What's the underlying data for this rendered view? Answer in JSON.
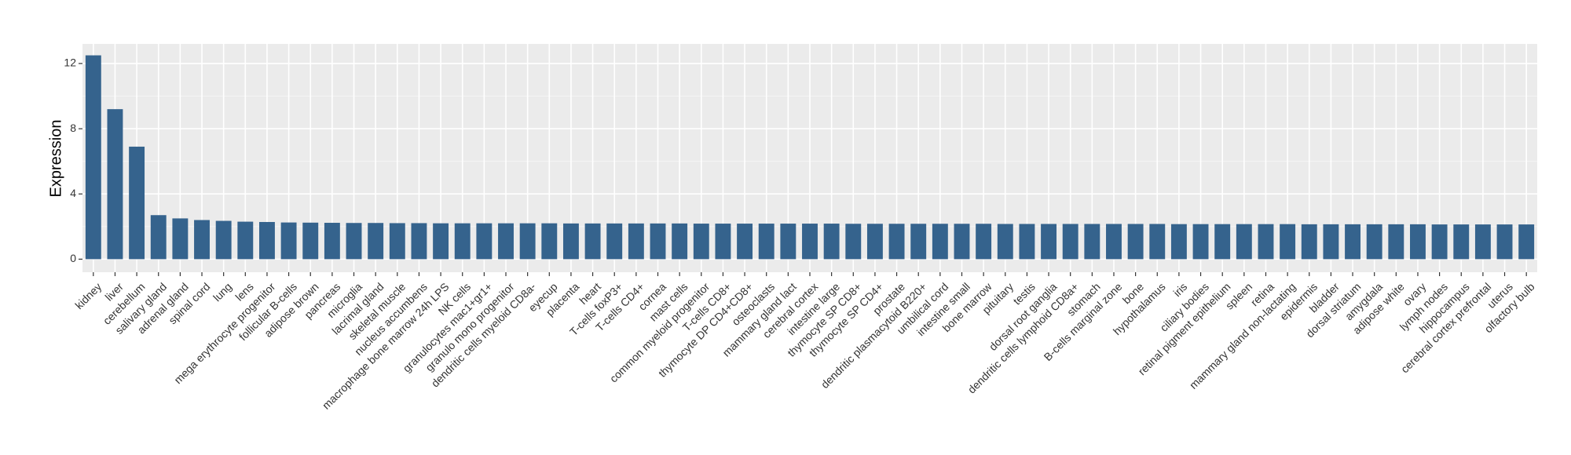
{
  "chart_data": {
    "type": "bar",
    "ylabel": "Expression",
    "xlabel": "",
    "ylim": [
      -0.8,
      13.2
    ],
    "yticks": [
      0,
      4,
      8,
      12
    ],
    "grid": true,
    "colors": {
      "bar": "#35638D",
      "panel": "#EBEBEB",
      "grid_major": "#FFFFFF",
      "grid_minor": "#F5F5F5"
    },
    "categories": [
      "kidney",
      "liver",
      "cerebellum",
      "salivary gland",
      "adrenal gland",
      "spinal cord",
      "lung",
      "lens",
      "mega erythrocyte progenitor",
      "follicular B-cells",
      "adipose brown",
      "pancreas",
      "microglia",
      "lacrimal gland",
      "skeletal muscle",
      "nucleus accumbens",
      "macrophage bone marrow 24h LPS",
      "NK cells",
      "granulocytes mac1+gr1+",
      "granulo mono progenitor",
      "dendritic cells myeloid CD8a-",
      "eyecup",
      "placenta",
      "heart",
      "T-cells foxP3+",
      "T-cells CD4+",
      "cornea",
      "mast cells",
      "common myeloid progenitor",
      "T-cells CD8+",
      "thymocyte DP CD4+CD8+",
      "osteoclasts",
      "mammary gland lact",
      "cerebral cortex",
      "intestine large",
      "thymocyte SP CD8+",
      "thymocyte SP CD4+",
      "prostate",
      "dendritic plasmacytoid B220+",
      "umbilical cord",
      "intestine small",
      "bone marrow",
      "pituitary",
      "testis",
      "dorsal root ganglia",
      "dendritic cells lymphoid CD8a+",
      "stomach",
      "B-cells marginal zone",
      "bone",
      "hypothalamus",
      "iris",
      "ciliary bodies",
      "retinal pigment epithelium",
      "spleen",
      "retina",
      "mammary gland non-lactating",
      "epidermis",
      "bladder",
      "dorsal striatum",
      "amygdala",
      "adipose white",
      "ovary",
      "lymph nodes",
      "hippocampus",
      "cerebral cortex prefrontal",
      "uterus",
      "olfactory bulb"
    ],
    "values": [
      12.5,
      9.2,
      6.9,
      2.7,
      2.5,
      2.4,
      2.35,
      2.3,
      2.28,
      2.25,
      2.24,
      2.23,
      2.22,
      2.22,
      2.21,
      2.21,
      2.2,
      2.2,
      2.2,
      2.2,
      2.2,
      2.2,
      2.19,
      2.19,
      2.19,
      2.19,
      2.19,
      2.19,
      2.18,
      2.18,
      2.18,
      2.18,
      2.18,
      2.18,
      2.18,
      2.17,
      2.17,
      2.17,
      2.17,
      2.17,
      2.17,
      2.17,
      2.16,
      2.16,
      2.16,
      2.16,
      2.16,
      2.16,
      2.16,
      2.16,
      2.15,
      2.15,
      2.15,
      2.15,
      2.15,
      2.15,
      2.14,
      2.14,
      2.14,
      2.14,
      2.14,
      2.14,
      2.13,
      2.13,
      2.13,
      2.13,
      2.13
    ]
  }
}
